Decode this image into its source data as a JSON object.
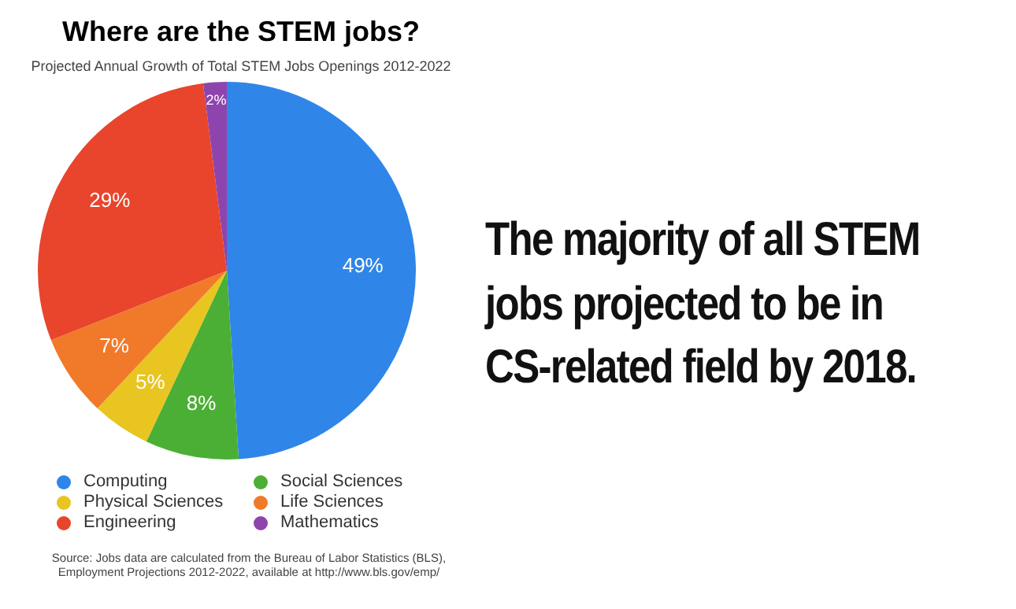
{
  "chart_data": {
    "type": "pie",
    "title": "Where are the STEM jobs?",
    "subtitle": "Projected Annual Growth of Total STEM Jobs Openings 2012-2022",
    "categories": [
      "Computing",
      "Social Sciences",
      "Physical Sciences",
      "Life Sciences",
      "Engineering",
      "Mathematics"
    ],
    "values": [
      49,
      8,
      5,
      7,
      29,
      2
    ],
    "colors": [
      "#2f86e8",
      "#4caf35",
      "#e8c520",
      "#f07a2a",
      "#e8452c",
      "#8e44ad"
    ],
    "value_labels": [
      "49%",
      "8%",
      "5%",
      "7%",
      "29%",
      "2%"
    ],
    "legend": "bottom",
    "annotations": [
      "Source: Jobs data are calculated from the Bureau of Labor Statistics (BLS), Employment Projections 2012-2022, available at http://www.bls.gov/emp/",
      "The majority of all STEM jobs projected to be in CS-related field by 2018."
    ]
  }
}
